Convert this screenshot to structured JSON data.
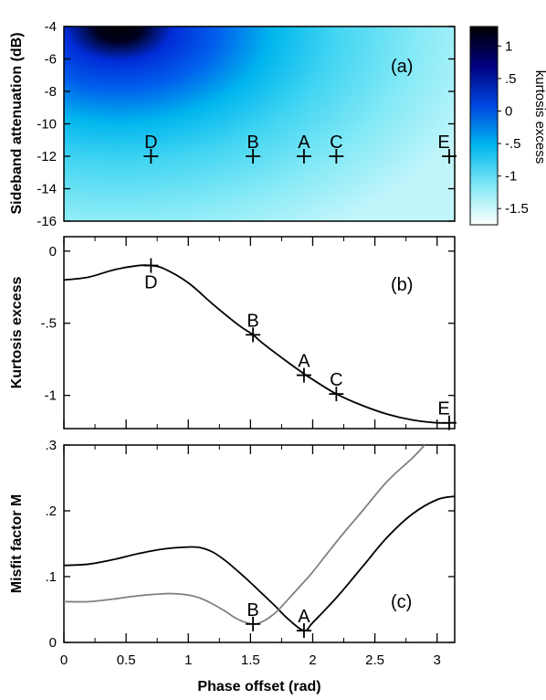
{
  "chart_data": [
    {
      "panel": "(a)",
      "type": "heatmap",
      "ylabel": "Sideband attenuation (dB)",
      "xlim": [
        0,
        3.1416
      ],
      "ylim": [
        -16,
        -4
      ],
      "yticks": [
        "-4",
        "-6",
        "-8",
        "-10",
        "-12",
        "-14",
        "-16"
      ],
      "yticks_values": [
        -4,
        -6,
        -8,
        -10,
        -12,
        -14,
        -16
      ],
      "colorbar": {
        "label": "kurtosis excess",
        "range": [
          -1.75,
          1.3
        ],
        "ticks": [
          "1",
          ".5",
          "0",
          "-.5",
          "-1",
          "-1.5"
        ],
        "tick_values": [
          1,
          0.5,
          0,
          -0.5,
          -1,
          -1.5
        ],
        "colors": [
          "#ffffff",
          "#7fe8f4",
          "#00b6ee",
          "#0047e0",
          "#000080",
          "#000000"
        ]
      },
      "points": [
        {
          "label": "D",
          "x": 0.7,
          "y": -12
        },
        {
          "label": "B",
          "x": 1.52,
          "y": -12
        },
        {
          "label": "A",
          "x": 1.93,
          "y": -12
        },
        {
          "label": "C",
          "x": 2.19,
          "y": -12
        },
        {
          "label": "E",
          "x": 3.1,
          "y": -12
        }
      ]
    },
    {
      "panel": "(b)",
      "type": "line",
      "ylabel": "Kurtosis excess",
      "xlim": [
        0,
        3.1416
      ],
      "ylim": [
        -1.23,
        0.1
      ],
      "yticks": [
        "0",
        "-.5",
        "-1"
      ],
      "yticks_values": [
        0,
        -0.5,
        -1
      ],
      "series": [
        {
          "x": [
            0,
            0.2,
            0.4,
            0.6,
            0.7,
            0.8,
            1.0,
            1.2,
            1.4,
            1.52,
            1.6,
            1.8,
            1.93,
            2.0,
            2.19,
            2.4,
            2.6,
            2.8,
            3.0,
            3.1416
          ],
          "values": [
            -0.2,
            -0.18,
            -0.13,
            -0.1,
            -0.1,
            -0.12,
            -0.22,
            -0.37,
            -0.51,
            -0.58,
            -0.64,
            -0.77,
            -0.85,
            -0.89,
            -0.99,
            -1.07,
            -1.13,
            -1.17,
            -1.19,
            -1.19
          ],
          "color": "#000000"
        }
      ],
      "points": [
        {
          "label": "D",
          "x": 0.7,
          "y": -0.1
        },
        {
          "label": "B",
          "x": 1.52,
          "y": -0.58
        },
        {
          "label": "A",
          "x": 1.93,
          "y": -0.86
        },
        {
          "label": "C",
          "x": 2.19,
          "y": -0.99
        },
        {
          "label": "E",
          "x": 3.12,
          "y": -1.19
        }
      ]
    },
    {
      "panel": "(c)",
      "type": "line",
      "ylabel": "Misfit factor M",
      "xlabel": "Phase offset (rad)",
      "xlim": [
        0,
        3.1416
      ],
      "ylim": [
        0,
        0.3
      ],
      "yticks": [
        ".3",
        ".2",
        ".1",
        "0"
      ],
      "yticks_values": [
        0.3,
        0.2,
        0.1,
        0
      ],
      "xticks": [
        "0",
        "0.5",
        "1",
        "1.5",
        "2",
        "2.5",
        "3"
      ],
      "xticks_values": [
        0,
        0.5,
        1,
        1.5,
        2,
        2.5,
        3
      ],
      "series": [
        {
          "x": [
            0,
            0.2,
            0.4,
            0.6,
            0.8,
            1.0,
            1.1,
            1.2,
            1.3,
            1.4,
            1.5,
            1.6,
            1.7,
            1.8,
            1.93,
            2.0,
            2.2,
            2.4,
            2.6,
            2.8,
            3.0,
            3.1416
          ],
          "values": [
            0.117,
            0.119,
            0.126,
            0.135,
            0.142,
            0.145,
            0.144,
            0.137,
            0.124,
            0.108,
            0.091,
            0.073,
            0.055,
            0.036,
            0.018,
            0.03,
            0.07,
            0.115,
            0.16,
            0.195,
            0.217,
            0.222
          ],
          "color": "#000000"
        },
        {
          "x": [
            0,
            0.2,
            0.4,
            0.6,
            0.8,
            0.9,
            1.0,
            1.1,
            1.2,
            1.3,
            1.4,
            1.52,
            1.6,
            1.7,
            1.8,
            1.93,
            2.0,
            2.2,
            2.4,
            2.6,
            2.8,
            2.9
          ],
          "values": [
            0.062,
            0.062,
            0.066,
            0.071,
            0.074,
            0.074,
            0.072,
            0.067,
            0.058,
            0.047,
            0.035,
            0.028,
            0.032,
            0.045,
            0.065,
            0.092,
            0.107,
            0.155,
            0.2,
            0.245,
            0.28,
            0.3
          ],
          "color": "#808080"
        }
      ],
      "points": [
        {
          "label": "B",
          "x": 1.52,
          "y": 0.028
        },
        {
          "label": "A",
          "x": 1.93,
          "y": 0.018
        }
      ]
    }
  ]
}
